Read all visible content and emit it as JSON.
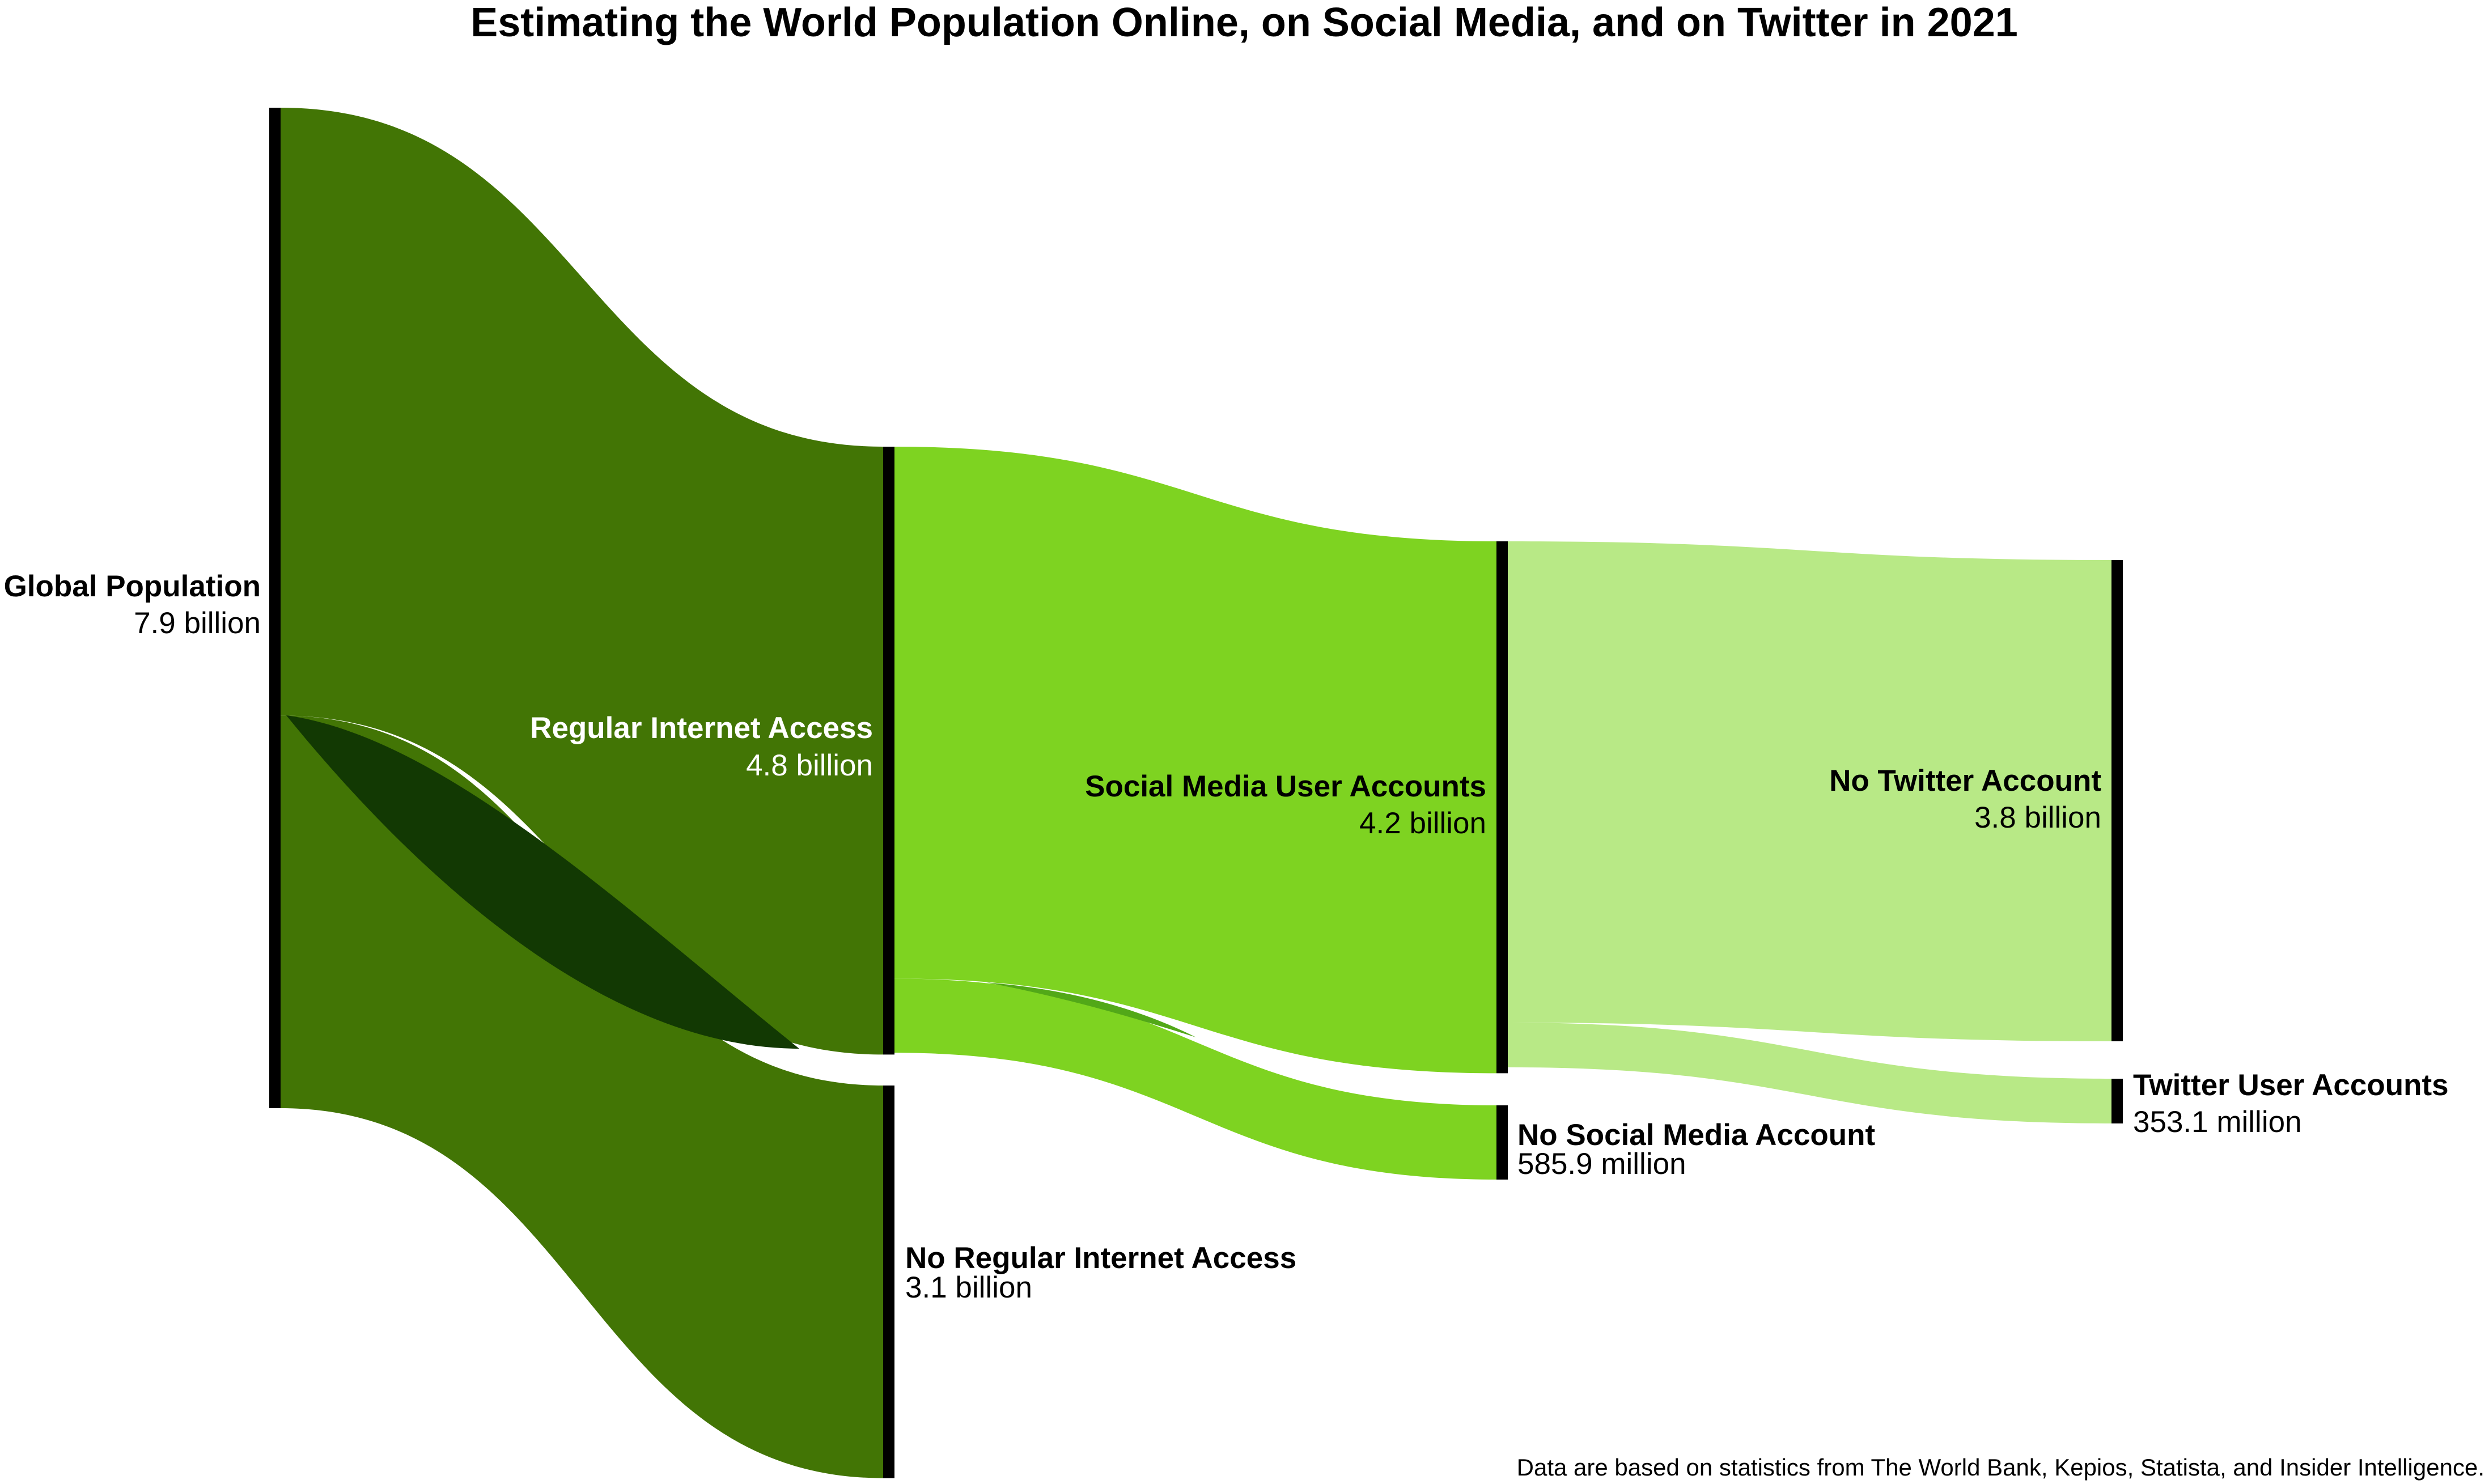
{
  "chart_data": {
    "type": "sankey",
    "title": "Estimating the World Population Online, on Social Media, and on Twitter in 2021",
    "caption": "Data are based on statistics from The World Bank, Kepios, Statista, and Insider Intelligence.",
    "nodes": [
      {
        "id": "global",
        "label": "Global Population",
        "value_label": "7.9 billion",
        "value": 7.9
      },
      {
        "id": "internet",
        "label": "Regular Internet Access",
        "value_label": "4.8 billion",
        "value": 4.8
      },
      {
        "id": "no_internet",
        "label": "No Regular Internet Access",
        "value_label": "3.1 billion",
        "value": 3.1
      },
      {
        "id": "social",
        "label": "Social Media User Accounts",
        "value_label": "4.2 billion",
        "value": 4.2
      },
      {
        "id": "no_social",
        "label": "No Social Media Account",
        "value_label": "585.9 million",
        "value": 0.5859
      },
      {
        "id": "no_twitter",
        "label": "No Twitter Account",
        "value_label": "3.8 billion",
        "value": 3.8
      },
      {
        "id": "twitter",
        "label": "Twitter User Accounts",
        "value_label": "353.1 million",
        "value": 0.3531
      }
    ],
    "links": [
      {
        "source": "global",
        "target": "internet",
        "value": 4.8
      },
      {
        "source": "global",
        "target": "no_internet",
        "value": 3.1
      },
      {
        "source": "internet",
        "target": "social",
        "value": 4.2
      },
      {
        "source": "internet",
        "target": "no_social",
        "value": 0.5859
      },
      {
        "source": "social",
        "target": "no_twitter",
        "value": 3.8
      },
      {
        "source": "social",
        "target": "twitter",
        "value": 0.3531
      }
    ],
    "colors": {
      "stage1": "#427505",
      "stage1_overlap": "#123903",
      "stage2": "#7ed321",
      "stage2_overlap": "#52a818",
      "stage3": "#b8e986",
      "node_bar": "#000000",
      "background": "#ffffff"
    }
  }
}
